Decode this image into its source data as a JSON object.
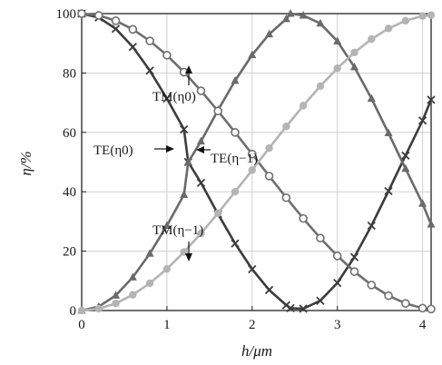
{
  "chart_data": {
    "type": "line",
    "title": "",
    "xlabel": "h/μm",
    "ylabel": "η/%",
    "xlim": [
      0,
      4.1
    ],
    "ylim": [
      0,
      100
    ],
    "xticks": [
      0,
      1,
      2,
      3,
      4
    ],
    "yticks": [
      0,
      20,
      40,
      60,
      80,
      100
    ],
    "grid": true,
    "series": [
      {
        "name": "TE(η0)",
        "color": "#3c3c3c",
        "marker": "x",
        "points": [
          [
            0,
            100
          ],
          [
            0.2,
            98.7
          ],
          [
            0.4,
            94.9
          ],
          [
            0.6,
            88.8
          ],
          [
            0.8,
            80.8
          ],
          [
            1.0,
            71.4
          ],
          [
            1.2,
            61.0
          ],
          [
            1.25,
            50.0
          ],
          [
            1.4,
            43.0
          ],
          [
            1.6,
            32.5
          ],
          [
            1.8,
            22.6
          ],
          [
            2.0,
            13.9
          ],
          [
            2.2,
            6.9
          ],
          [
            2.4,
            1.8
          ],
          [
            2.45,
            0.8
          ],
          [
            2.6,
            0.6
          ],
          [
            2.8,
            3.3
          ],
          [
            3.0,
            9.3
          ],
          [
            3.2,
            18.0
          ],
          [
            3.4,
            28.6
          ],
          [
            3.6,
            40.2
          ],
          [
            3.8,
            52.2
          ],
          [
            4.0,
            64.0
          ],
          [
            4.1,
            71.0
          ]
        ]
      },
      {
        "name": "TE(η−1)",
        "color": "#6a6a6a",
        "marker": "triangle",
        "points": [
          [
            0,
            0
          ],
          [
            0.2,
            1.3
          ],
          [
            0.4,
            5.1
          ],
          [
            0.6,
            11.2
          ],
          [
            0.8,
            19.2
          ],
          [
            1.0,
            28.6
          ],
          [
            1.2,
            39.0
          ],
          [
            1.25,
            50.0
          ],
          [
            1.4,
            57.0
          ],
          [
            1.6,
            67.5
          ],
          [
            1.8,
            77.4
          ],
          [
            2.0,
            86.1
          ],
          [
            2.2,
            93.1
          ],
          [
            2.4,
            98.2
          ],
          [
            2.45,
            100
          ],
          [
            2.6,
            99.4
          ],
          [
            2.8,
            96.7
          ],
          [
            3.0,
            90.7
          ],
          [
            3.2,
            82.0
          ],
          [
            3.4,
            71.4
          ],
          [
            3.6,
            59.8
          ],
          [
            3.8,
            47.8
          ],
          [
            4.0,
            36.0
          ],
          [
            4.1,
            29.0
          ]
        ]
      },
      {
        "name": "TM(η0)",
        "color": "#6f6f6f",
        "marker": "circle-open",
        "points": [
          [
            0,
            100
          ],
          [
            0.2,
            99.4
          ],
          [
            0.4,
            97.6
          ],
          [
            0.6,
            94.7
          ],
          [
            0.8,
            90.8
          ],
          [
            1.0,
            86.0
          ],
          [
            1.2,
            80.3
          ],
          [
            1.4,
            74.0
          ],
          [
            1.6,
            67.2
          ],
          [
            1.8,
            60.0
          ],
          [
            2.0,
            52.7
          ],
          [
            2.2,
            45.3
          ],
          [
            2.4,
            38.0
          ],
          [
            2.6,
            31.0
          ],
          [
            2.8,
            24.4
          ],
          [
            3.0,
            18.4
          ],
          [
            3.2,
            13.1
          ],
          [
            3.4,
            8.6
          ],
          [
            3.6,
            5.0
          ],
          [
            3.8,
            2.4
          ],
          [
            4.0,
            0.8
          ],
          [
            4.1,
            0.5
          ]
        ]
      },
      {
        "name": "TM(η−1)",
        "color": "#b4b4b4",
        "marker": "circle-filled",
        "points": [
          [
            0,
            0
          ],
          [
            0.2,
            0.6
          ],
          [
            0.4,
            2.4
          ],
          [
            0.6,
            5.3
          ],
          [
            0.8,
            9.2
          ],
          [
            1.0,
            14.0
          ],
          [
            1.2,
            19.7
          ],
          [
            1.4,
            26.0
          ],
          [
            1.6,
            32.8
          ],
          [
            1.8,
            40.0
          ],
          [
            2.0,
            47.3
          ],
          [
            2.2,
            54.7
          ],
          [
            2.4,
            62.0
          ],
          [
            2.6,
            69.0
          ],
          [
            2.8,
            75.6
          ],
          [
            3.0,
            81.6
          ],
          [
            3.2,
            86.9
          ],
          [
            3.4,
            91.4
          ],
          [
            3.6,
            95.0
          ],
          [
            3.8,
            97.6
          ],
          [
            4.0,
            99.2
          ],
          [
            4.1,
            99.5
          ]
        ]
      }
    ],
    "annotations": [
      {
        "text": "TM(η0)",
        "at": [
          1.25,
          82
        ]
      },
      {
        "text": "TE(η0)",
        "at": [
          1.2,
          55
        ]
      },
      {
        "text": "TE(η−1)",
        "at": [
          1.35,
          51
        ]
      },
      {
        "text": "TM(η−1)",
        "at": [
          1.25,
          15
        ]
      }
    ]
  }
}
